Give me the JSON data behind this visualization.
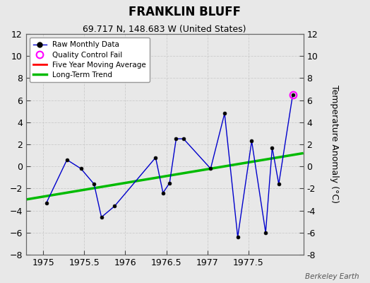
{
  "title": "FRANKLIN BLUFF",
  "subtitle": "69.717 N, 148.683 W (United States)",
  "watermark": "Berkeley Earth",
  "ylabel": "Temperature Anomaly (°C)",
  "xlim": [
    1974.79,
    1978.17
  ],
  "ylim": [
    -8,
    12
  ],
  "yticks": [
    -8,
    -6,
    -4,
    -2,
    0,
    2,
    4,
    6,
    8,
    10,
    12
  ],
  "xticks": [
    1975,
    1975.5,
    1976,
    1976.5,
    1977,
    1977.5
  ],
  "background_color": "#e8e8e8",
  "plot_bg_color": "#e8e8e8",
  "raw_x": [
    1975.04,
    1975.29,
    1975.46,
    1975.62,
    1975.71,
    1975.87,
    1976.37,
    1976.46,
    1976.54,
    1976.62,
    1976.71,
    1977.04,
    1977.21,
    1977.37,
    1977.54,
    1977.71,
    1977.79,
    1977.87,
    1978.04
  ],
  "raw_y": [
    -3.3,
    0.6,
    -0.2,
    -1.6,
    -4.6,
    -3.6,
    0.8,
    -2.4,
    -1.5,
    2.5,
    2.5,
    -0.2,
    4.8,
    -6.4,
    2.3,
    -6.0,
    1.7,
    -1.6,
    6.5
  ],
  "qc_fail_x": [
    1978.04
  ],
  "qc_fail_y": [
    6.5
  ],
  "trend_x": [
    1974.79,
    1978.17
  ],
  "trend_y": [
    -3.0,
    1.2
  ],
  "raw_color": "#0000cc",
  "raw_marker_color": "#000000",
  "trend_color": "#00bb00",
  "mavg_color": "#ff0000",
  "qc_color": "#ff00ff",
  "legend_loc": "upper left",
  "title_fontsize": 12,
  "subtitle_fontsize": 9,
  "tick_labelsize": 9,
  "ylabel_fontsize": 9
}
